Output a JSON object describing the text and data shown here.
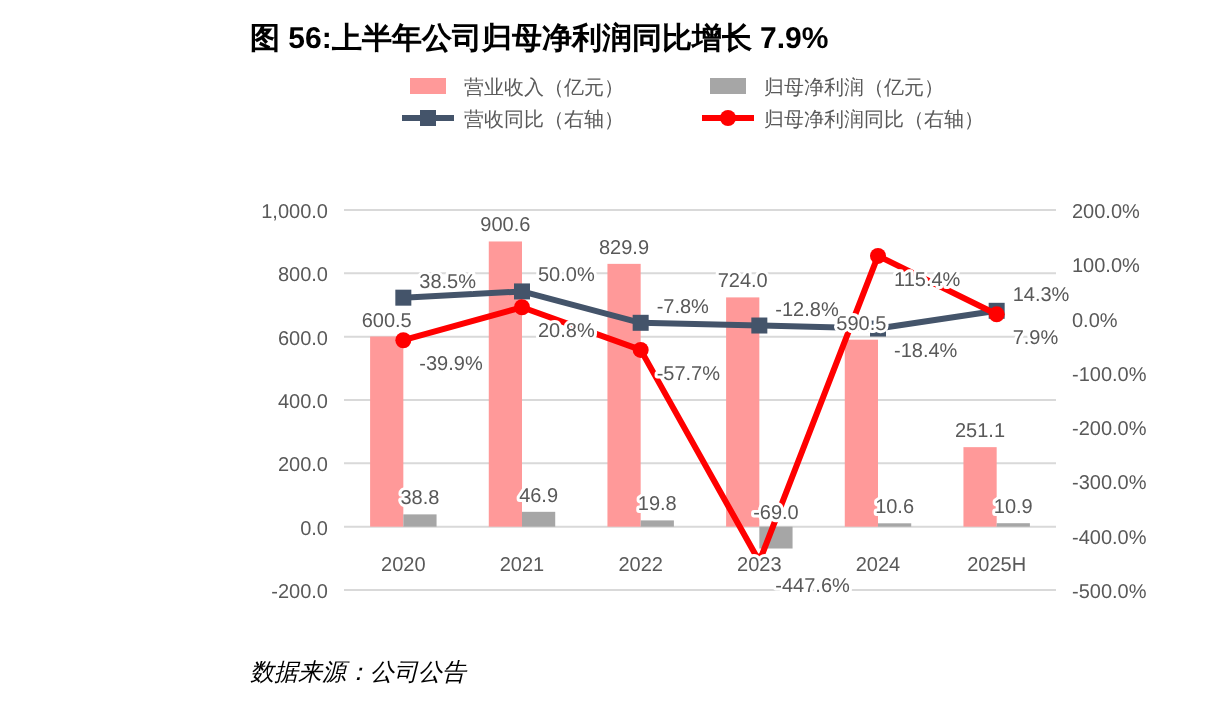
{
  "chart_data": {
    "type": "bar",
    "title": "图 56:上半年公司归母净利润同比增长 7.9%",
    "categories": [
      "2020",
      "2021",
      "2022",
      "2023",
      "2024",
      "2025H"
    ],
    "series": [
      {
        "name": "营业收入（亿元）",
        "color": "#ff9999",
        "values": [
          600.5,
          900.6,
          829.9,
          724.0,
          590.5,
          251.1
        ],
        "value_labels": [
          "600.5",
          "900.6",
          "829.9",
          "724.0",
          "590.5",
          "251.1"
        ]
      },
      {
        "name": "归母净利润（亿元）",
        "color": "#a6a6a6",
        "values": [
          38.8,
          46.9,
          19.8,
          -69.0,
          10.6,
          10.9
        ],
        "value_labels": [
          "38.8",
          "46.9",
          "19.8",
          "-69.0",
          "10.6",
          "10.9"
        ]
      },
      {
        "name": "营收同比（右轴）",
        "type": "line",
        "axis": "y2",
        "marker": "square",
        "color": "#44546a",
        "values": [
          38.5,
          50.0,
          -7.8,
          -12.8,
          -18.4,
          14.3
        ],
        "value_labels": [
          "38.5%",
          "50.0%",
          "-7.8%",
          "-12.8%",
          "-18.4%",
          "14.3%"
        ]
      },
      {
        "name": "归母净利润同比（右轴）",
        "type": "line",
        "axis": "y2",
        "marker": "circle",
        "color": "#ff0000",
        "values": [
          -39.9,
          20.8,
          -57.7,
          -447.6,
          115.4,
          7.9
        ],
        "value_labels": [
          "-39.9%",
          "20.8%",
          "-57.7%",
          "-447.6%",
          "115.4%",
          "7.9%"
        ]
      }
    ],
    "ylim": [
      -200,
      1000
    ],
    "yticks": [
      {
        "value": -200,
        "label": "-200.0"
      },
      {
        "value": 0,
        "label": "0.0"
      },
      {
        "value": 200,
        "label": "200.0"
      },
      {
        "value": 400,
        "label": "400.0"
      },
      {
        "value": 600,
        "label": "600.0"
      },
      {
        "value": 800,
        "label": "800.0"
      },
      {
        "value": 1000,
        "label": "1,000.0"
      }
    ],
    "y2lim": [
      -500,
      200
    ],
    "y2ticks": [
      {
        "value": -500,
        "label": "-500.0%"
      },
      {
        "value": -400,
        "label": "-400.0%"
      },
      {
        "value": -300,
        "label": "-300.0%"
      },
      {
        "value": -200,
        "label": "-200.0%"
      },
      {
        "value": -100,
        "label": "-100.0%"
      },
      {
        "value": 0,
        "label": "0.0%"
      },
      {
        "value": 100,
        "label": "100.0%"
      },
      {
        "value": 200,
        "label": "200.0%"
      }
    ],
    "grid": "y",
    "legend": "top",
    "annotations": [
      "数据来源：公司公告"
    ]
  }
}
